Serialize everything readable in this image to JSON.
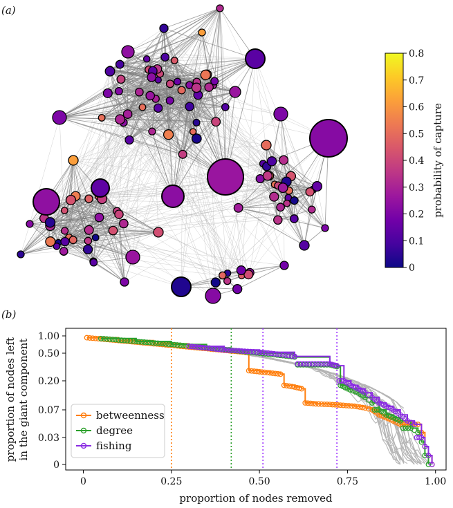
{
  "panel_a_label": "(a)",
  "panel_b_label": "(b)",
  "chart_data": [
    {
      "type": "network",
      "panel": "(a)",
      "colorbar": {
        "label": "probability of capture",
        "min": 0,
        "max": 0.8,
        "ticks": [
          "0",
          "0.1",
          "0.2",
          "0.3",
          "0.4",
          "0.5",
          "0.6",
          "0.7",
          "0.8"
        ],
        "colors": [
          "#0d0887",
          "#46039f",
          "#7201a8",
          "#9c179e",
          "#bd3786",
          "#d8576b",
          "#ed7953",
          "#fb9f3a",
          "#fdca26",
          "#f0f921"
        ]
      },
      "node_count": 113
    },
    {
      "type": "line",
      "panel": "(b)",
      "xlabel": "proportion of nodes removed",
      "ylabel_line1": "proportion of nodes left",
      "ylabel_line2": "in the giant component",
      "xlim": [
        0,
        1
      ],
      "xticks": [
        {
          "v": 0,
          "label": "0"
        },
        {
          "v": 0.25,
          "label": "0.25"
        },
        {
          "v": 0.5,
          "label": "0.50"
        },
        {
          "v": 0.75,
          "label": "0.75"
        },
        {
          "v": 1.0,
          "label": "1.00"
        }
      ],
      "yticks": [
        {
          "v": 1.0,
          "label": "1.00"
        },
        {
          "v": 0.5,
          "label": "0.50"
        },
        {
          "v": 0.2,
          "label": "0.20"
        },
        {
          "v": 0.07,
          "label": "0.07"
        },
        {
          "v": 0.03,
          "label": "0.03"
        },
        {
          "v": 0,
          "label": "0"
        }
      ],
      "y_transform_note": "nonlinear (symlog-like) y scale",
      "vlines": [
        {
          "x": 0.25,
          "color": "#ff7f0e",
          "series": "betweenness"
        },
        {
          "x": 0.42,
          "color": "#2ca02c",
          "series": "degree"
        },
        {
          "x": 0.51,
          "color": "#9b30ff",
          "series": "fishing"
        },
        {
          "x": 0.72,
          "color": "#9b30ff",
          "series": "fishing"
        }
      ],
      "legend": [
        {
          "name": "betweenness",
          "color": "#ff7f0e"
        },
        {
          "name": "degree",
          "color": "#2ca02c"
        },
        {
          "name": "fishing",
          "color": "#8a2be2"
        }
      ],
      "series": [
        {
          "name": "betweenness",
          "color": "#ff7f0e",
          "points": [
            [
              0.01,
              0.93
            ],
            [
              0.1,
              0.83
            ],
            [
              0.2,
              0.73
            ],
            [
              0.3,
              0.64
            ],
            [
              0.4,
              0.56
            ],
            [
              0.46,
              0.52
            ],
            [
              0.47,
              0.28
            ],
            [
              0.5,
              0.27
            ],
            [
              0.53,
              0.26
            ],
            [
              0.56,
              0.25
            ],
            [
              0.57,
              0.17
            ],
            [
              0.6,
              0.16
            ],
            [
              0.62,
              0.15
            ],
            [
              0.63,
              0.09
            ],
            [
              0.66,
              0.087
            ],
            [
              0.7,
              0.085
            ],
            [
              0.73,
              0.083
            ],
            [
              0.77,
              0.08
            ],
            [
              0.8,
              0.075
            ],
            [
              0.82,
              0.07
            ],
            [
              0.84,
              0.06
            ],
            [
              0.86,
              0.055
            ],
            [
              0.88,
              0.05
            ],
            [
              0.9,
              0.045
            ],
            [
              0.92,
              0.045
            ],
            [
              0.95,
              0.045
            ],
            [
              0.96,
              0.035
            ],
            [
              0.97,
              0.02
            ],
            [
              0.98,
              0.01
            ],
            [
              0.99,
              0.0
            ]
          ]
        },
        {
          "name": "degree",
          "color": "#2ca02c",
          "points": [
            [
              0.05,
              0.9
            ],
            [
              0.15,
              0.8
            ],
            [
              0.25,
              0.71
            ],
            [
              0.35,
              0.62
            ],
            [
              0.42,
              0.56
            ],
            [
              0.5,
              0.5
            ],
            [
              0.6,
              0.44
            ],
            [
              0.7,
              0.34
            ],
            [
              0.72,
              0.32
            ],
            [
              0.73,
              0.17
            ],
            [
              0.75,
              0.15
            ],
            [
              0.78,
              0.13
            ],
            [
              0.8,
              0.11
            ],
            [
              0.82,
              0.09
            ],
            [
              0.84,
              0.07
            ],
            [
              0.86,
              0.06
            ],
            [
              0.88,
              0.055
            ],
            [
              0.9,
              0.05
            ],
            [
              0.93,
              0.04
            ],
            [
              0.95,
              0.035
            ],
            [
              0.96,
              0.025
            ],
            [
              0.97,
              0.01
            ],
            [
              0.98,
              0.0
            ]
          ]
        },
        {
          "name": "fishing",
          "color": "#8a2be2",
          "points": [
            [
              0.3,
              0.66
            ],
            [
              0.4,
              0.57
            ],
            [
              0.5,
              0.52
            ],
            [
              0.6,
              0.45
            ],
            [
              0.7,
              0.35
            ],
            [
              0.72,
              0.33
            ],
            [
              0.74,
              0.2
            ],
            [
              0.76,
              0.17
            ],
            [
              0.78,
              0.15
            ],
            [
              0.8,
              0.13
            ],
            [
              0.82,
              0.11
            ],
            [
              0.84,
              0.09
            ],
            [
              0.86,
              0.08
            ],
            [
              0.88,
              0.07
            ],
            [
              0.9,
              0.06
            ],
            [
              0.92,
              0.05
            ],
            [
              0.94,
              0.045
            ],
            [
              0.96,
              0.03
            ],
            [
              0.97,
              0.02
            ],
            [
              0.98,
              0.01
            ],
            [
              0.99,
              0.0
            ]
          ]
        }
      ]
    }
  ]
}
